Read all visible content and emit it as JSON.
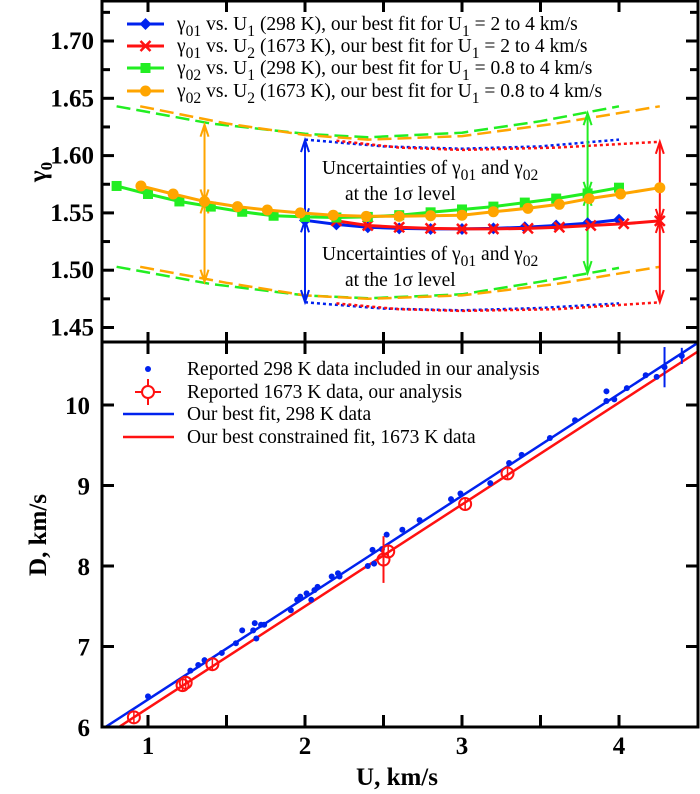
{
  "chart_data": [
    {
      "type": "line",
      "ylabel": {
        "main": "γ",
        "sub": "0"
      },
      "xlim": [
        0.7,
        4.5
      ],
      "ylim": [
        1.438,
        1.736
      ],
      "xticks": [
        1,
        1.5,
        2,
        2.5,
        3,
        3.5,
        4
      ],
      "yticks": [
        1.45,
        1.5,
        1.55,
        1.6,
        1.65,
        1.7
      ],
      "ytick_labels": [
        "1.45",
        "1.50",
        "1.55",
        "1.60",
        "1.65",
        "1.70"
      ],
      "grid": false,
      "legend_position": "top",
      "series": [
        {
          "legend": [
            {
              "t": "γ"
            },
            {
              "t": "01",
              "sub": true
            },
            {
              "t": " vs. U"
            },
            {
              "t": "1",
              "sub": true
            },
            {
              "t": " (298 K),   our best fit for U"
            },
            {
              "t": "1",
              "sub": true
            },
            {
              "t": " = 2 to 4 km/s"
            }
          ],
          "color": "#0022ee",
          "marker": "diamond",
          "x": [
            2.0,
            2.2,
            2.4,
            2.6,
            2.8,
            3.0,
            3.2,
            3.4,
            3.6,
            3.8,
            4.0
          ],
          "y": [
            1.5435,
            1.54,
            1.5375,
            1.5365,
            1.536,
            1.536,
            1.5365,
            1.5375,
            1.539,
            1.541,
            1.544
          ]
        },
        {
          "legend": [
            {
              "t": "γ"
            },
            {
              "t": "01",
              "sub": true
            },
            {
              "t": " vs. U"
            },
            {
              "t": "2",
              "sub": true
            },
            {
              "t": " (1673 K), our best fit for U"
            },
            {
              "t": "1",
              "sub": true
            },
            {
              "t": " = 2 to 4 km/s"
            }
          ],
          "color": "#ff1111",
          "marker": "x",
          "x": [
            2.2,
            2.4,
            2.6,
            2.8,
            3.0,
            3.2,
            3.42,
            3.62,
            3.82,
            4.03,
            4.26
          ],
          "y": [
            1.543,
            1.539,
            1.5375,
            1.5365,
            1.536,
            1.536,
            1.5365,
            1.5375,
            1.539,
            1.5405,
            1.543
          ]
        },
        {
          "legend": [
            {
              "t": "γ"
            },
            {
              "t": "02",
              "sub": true
            },
            {
              "t": " vs. U"
            },
            {
              "t": "1",
              "sub": true
            },
            {
              "t": " (298 K),   our best fit for U"
            },
            {
              "t": "1",
              "sub": true
            },
            {
              "t": " = 0.8 to 4 km/s"
            }
          ],
          "color": "#22ee22",
          "marker": "square",
          "x": [
            0.8,
            1.0,
            1.2,
            1.4,
            1.6,
            1.8,
            2.0,
            2.2,
            2.4,
            2.6,
            2.8,
            3.0,
            3.2,
            3.4,
            3.6,
            3.8,
            4.0
          ],
          "y": [
            1.5735,
            1.5665,
            1.56,
            1.5555,
            1.551,
            1.5475,
            1.5465,
            1.546,
            1.5465,
            1.548,
            1.5505,
            1.553,
            1.5555,
            1.559,
            1.5625,
            1.567,
            1.572
          ]
        },
        {
          "legend": [
            {
              "t": "γ"
            },
            {
              "t": "02",
              "sub": true
            },
            {
              "t": " vs. U"
            },
            {
              "t": "2",
              "sub": true
            },
            {
              "t": " (1673 K), our best fit for U"
            },
            {
              "t": "1",
              "sub": true
            },
            {
              "t": " = 0.8 to 4 km/s"
            }
          ],
          "color": "#ffa500",
          "marker": "circle",
          "x": [
            0.955,
            1.16,
            1.36,
            1.57,
            1.76,
            1.97,
            2.18,
            2.39,
            2.6,
            2.8,
            3.0,
            3.2,
            3.42,
            3.62,
            3.81,
            4.01,
            4.26
          ],
          "y": [
            1.5735,
            1.5665,
            1.56,
            1.5555,
            1.5525,
            1.55,
            1.548,
            1.547,
            1.547,
            1.5475,
            1.548,
            1.551,
            1.554,
            1.5575,
            1.5625,
            1.5665,
            1.572
          ]
        }
      ],
      "uncertainty_bounds": [
        {
          "color": "#22ee22",
          "style": "dashed",
          "upper": [
            [
              0.8,
              1.643
            ],
            [
              1.4,
              1.628
            ],
            [
              2.0,
              1.619
            ],
            [
              2.4,
              1.616
            ],
            [
              3.0,
              1.62
            ],
            [
              3.5,
              1.63
            ],
            [
              4.0,
              1.643
            ]
          ],
          "lower": [
            [
              0.8,
              1.503
            ],
            [
              1.4,
              1.488
            ],
            [
              2.0,
              1.478
            ],
            [
              2.4,
              1.4755
            ],
            [
              3.0,
              1.479
            ],
            [
              3.5,
              1.49
            ],
            [
              4.0,
              1.502
            ]
          ]
        },
        {
          "color": "#ffa500",
          "style": "dashed",
          "upper": [
            [
              0.95,
              1.643
            ],
            [
              1.5,
              1.628
            ],
            [
              2.0,
              1.618
            ],
            [
              2.4,
              1.614
            ],
            [
              3.0,
              1.617
            ],
            [
              3.6,
              1.628
            ],
            [
              4.26,
              1.643
            ]
          ],
          "lower": [
            [
              0.95,
              1.503
            ],
            [
              1.5,
              1.489
            ],
            [
              2.0,
              1.478
            ],
            [
              2.4,
              1.475
            ],
            [
              3.0,
              1.478
            ],
            [
              3.6,
              1.488
            ],
            [
              4.26,
              1.503
            ]
          ]
        },
        {
          "color": "#0022ee",
          "style": "dotted",
          "upper": [
            [
              2.0,
              1.614
            ],
            [
              2.5,
              1.608
            ],
            [
              3.0,
              1.606
            ],
            [
              3.5,
              1.608
            ],
            [
              4.0,
              1.614
            ]
          ],
          "lower": [
            [
              2.0,
              1.472
            ],
            [
              2.5,
              1.4665
            ],
            [
              3.0,
              1.465
            ],
            [
              3.5,
              1.467
            ],
            [
              4.0,
              1.471
            ]
          ]
        },
        {
          "color": "#ff1111",
          "style": "dotted",
          "upper": [
            [
              2.2,
              1.613
            ],
            [
              2.6,
              1.607
            ],
            [
              3.0,
              1.605
            ],
            [
              3.6,
              1.607
            ],
            [
              4.26,
              1.612
            ]
          ],
          "lower": [
            [
              2.2,
              1.471
            ],
            [
              2.6,
              1.466
            ],
            [
              3.0,
              1.4645
            ],
            [
              3.6,
              1.466
            ],
            [
              4.26,
              1.472
            ]
          ]
        }
      ],
      "uncertainty_arrows": [
        {
          "x": 1.36,
          "upper": 1.627,
          "center": 1.56,
          "lower": 1.49,
          "color": "#ffa500"
        },
        {
          "x": 2.0,
          "upper": 1.6136,
          "center": 1.5435,
          "lower": 1.4722,
          "color": "#0022ee"
        },
        {
          "x": 3.8,
          "upper": 1.637,
          "center": 1.5667,
          "lower": 1.4975,
          "color": "#22ee22"
        },
        {
          "x": 4.26,
          "upper": 1.612,
          "center": 1.543,
          "lower": 1.4722,
          "color": "#ff1111"
        }
      ],
      "annotations": [
        {
          "line1": [
            {
              "t": "Uncertainties of γ"
            },
            {
              "t": "01",
              "sub": true
            },
            {
              "t": " and γ"
            },
            {
              "t": "02",
              "sub": true
            }
          ],
          "line2": [
            {
              "t": "at the 1σ level"
            }
          ]
        },
        {
          "line1": [
            {
              "t": "Uncertainties of γ"
            },
            {
              "t": "01",
              "sub": true
            },
            {
              "t": " and γ"
            },
            {
              "t": "02",
              "sub": true
            }
          ],
          "line2": [
            {
              "t": "at the 1σ level"
            }
          ]
        }
      ]
    },
    {
      "type": "scatter",
      "xlabel": "U, km/s",
      "ylabel": "D, km/s",
      "xlim": [
        0.7,
        4.5
      ],
      "ylim": [
        6.0,
        10.78
      ],
      "xticks": [
        1,
        1.5,
        2,
        2.5,
        3,
        3.5,
        4
      ],
      "xtick_labels": [
        "1",
        "",
        "2",
        "",
        "3",
        "",
        "4"
      ],
      "yticks": [
        6,
        7,
        8,
        9,
        10
      ],
      "ytick_labels": [
        "6",
        "7",
        "8",
        "9",
        "10"
      ],
      "grid": false,
      "legend_position": "top-left",
      "series": [
        {
          "name": "Reported 298 K data included in our analysis",
          "color": "#0022ee",
          "marker": "dot",
          "points": [
            [
              1.0,
              6.38
            ],
            [
              1.27,
              6.7
            ],
            [
              1.32,
              6.77
            ],
            [
              1.36,
              6.83
            ],
            [
              1.47,
              6.92
            ],
            [
              1.56,
              7.04
            ],
            [
              1.6,
              7.2
            ],
            [
              1.67,
              7.2
            ],
            [
              1.68,
              7.29
            ],
            [
              1.69,
              7.1
            ],
            [
              1.72,
              7.27
            ],
            [
              1.74,
              7.27
            ],
            [
              1.91,
              7.45
            ],
            [
              1.95,
              7.58
            ],
            [
              1.97,
              7.62
            ],
            [
              2.01,
              7.66
            ],
            [
              2.04,
              7.58
            ],
            [
              2.06,
              7.7
            ],
            [
              2.08,
              7.74
            ],
            [
              2.17,
              7.87
            ],
            [
              2.21,
              7.91
            ],
            [
              2.22,
              7.87
            ],
            [
              2.4,
              8.0
            ],
            [
              2.43,
              8.2
            ],
            [
              2.44,
              8.03
            ],
            [
              2.49,
              8.21
            ],
            [
              2.52,
              8.39
            ],
            [
              2.62,
              8.45
            ],
            [
              2.73,
              8.57
            ],
            [
              2.93,
              8.83
            ],
            [
              2.99,
              8.9
            ],
            [
              3.18,
              9.03
            ],
            [
              3.3,
              9.28
            ],
            [
              3.38,
              9.38
            ],
            [
              3.56,
              9.59
            ],
            [
              3.72,
              9.81
            ],
            [
              3.92,
              10.17
            ],
            [
              3.92,
              10.05
            ],
            [
              3.97,
              10.07
            ],
            [
              4.05,
              10.21
            ],
            [
              4.17,
              10.37
            ],
            [
              4.24,
              10.35
            ],
            [
              4.29,
              10.47
            ],
            [
              4.4,
              10.61
            ]
          ],
          "yerr": [
            [
              4.29,
              10.47,
              0.25
            ],
            [
              4.4,
              10.61,
              0.1
            ]
          ]
        },
        {
          "name": "Reported 1673 K data, our analysis",
          "color": "#ff1111",
          "marker": "circle-errorbar",
          "points": [
            [
              0.91,
              6.12
            ],
            [
              1.22,
              6.52
            ],
            [
              1.24,
              6.55
            ],
            [
              1.41,
              6.78
            ],
            [
              2.5,
              8.08
            ],
            [
              2.53,
              8.18
            ],
            [
              3.02,
              8.77
            ],
            [
              3.29,
              9.15
            ]
          ],
          "yerr": [
            [
              2.5,
              8.08,
              0.29
            ]
          ]
        },
        {
          "name": "Our best fit, 298 K data",
          "color": "#0022ee",
          "marker": "line",
          "fit": {
            "intercept": 5.077,
            "slope": 1.265,
            "x_range": [
              0.73,
              4.5
            ]
          }
        },
        {
          "name": "Our best constrained fit, 1673 K data",
          "color": "#ff1111",
          "marker": "line",
          "fit": {
            "intercept": 4.969,
            "slope": 1.265,
            "x_range": [
              0.815,
              4.5
            ]
          }
        }
      ]
    }
  ]
}
